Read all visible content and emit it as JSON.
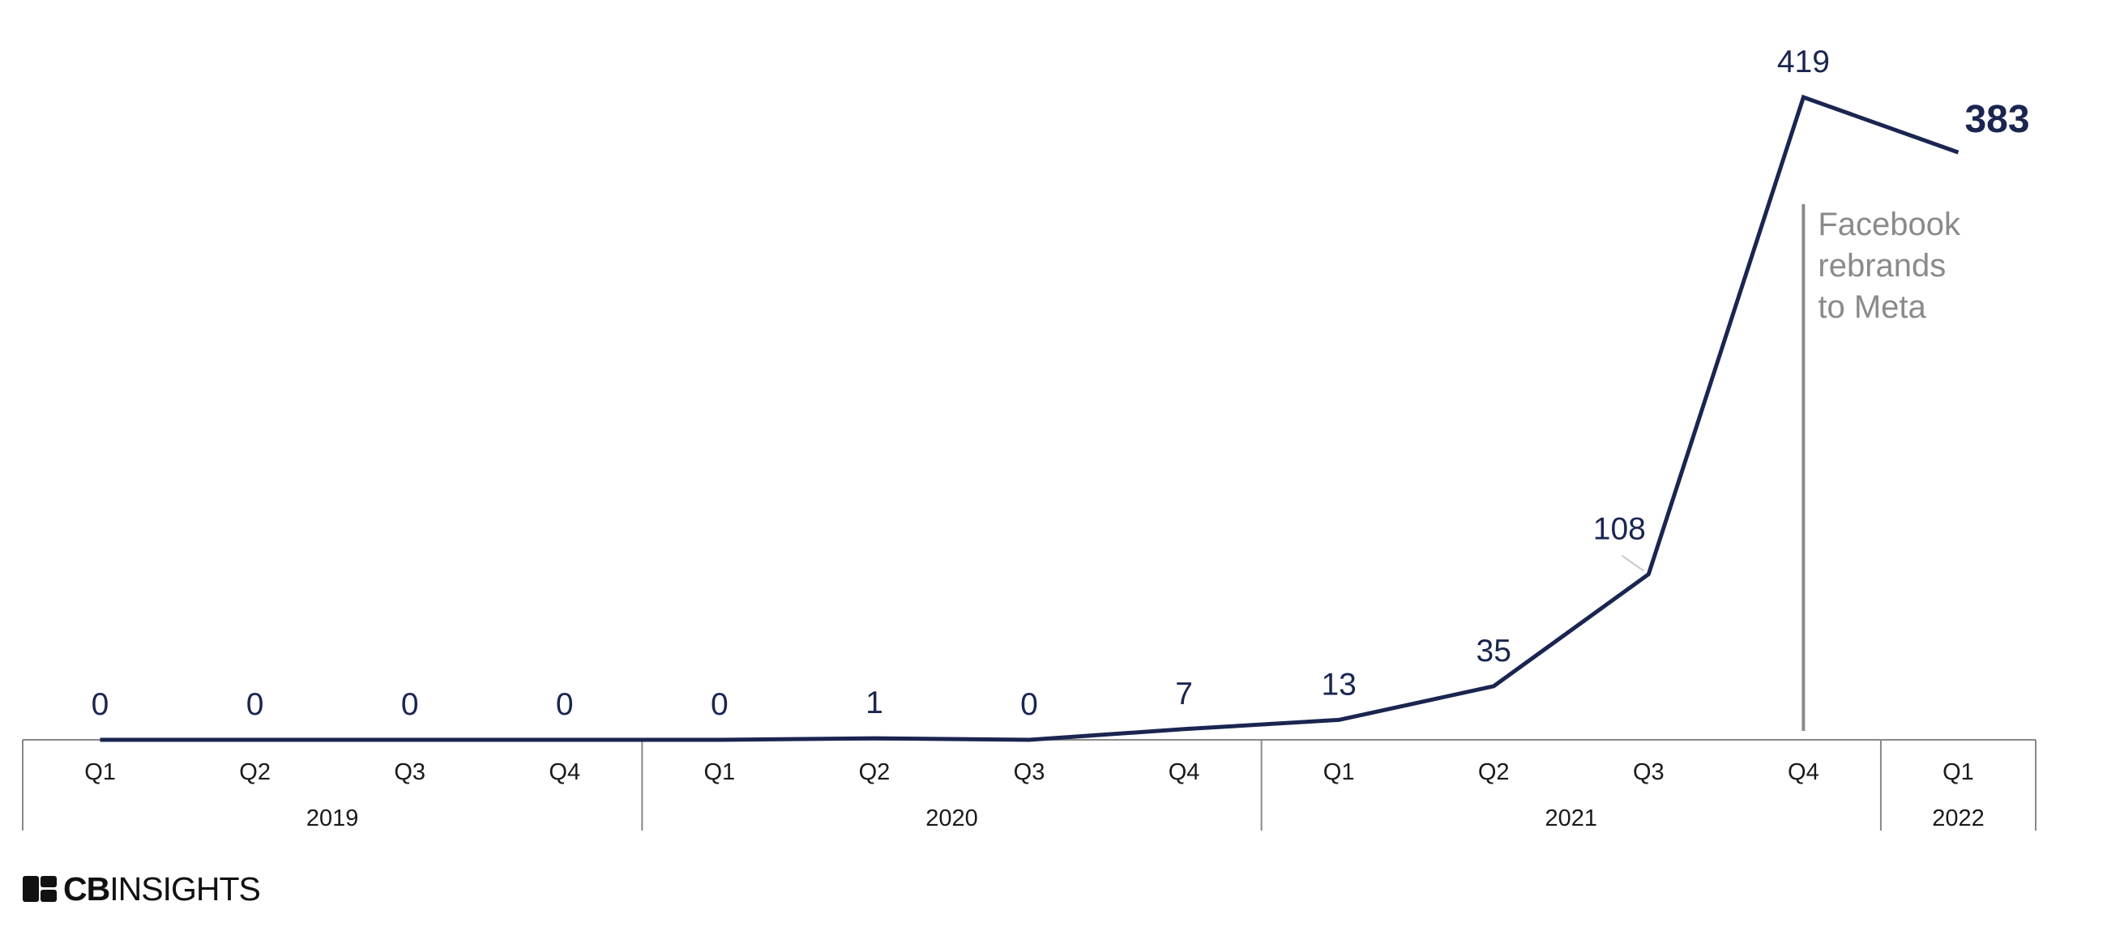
{
  "chart_data": {
    "type": "line",
    "categories": [
      "Q1",
      "Q2",
      "Q3",
      "Q4",
      "Q1",
      "Q2",
      "Q3",
      "Q4",
      "Q1",
      "Q2",
      "Q3",
      "Q4",
      "Q1"
    ],
    "years": [
      {
        "label": "2019",
        "span": 4
      },
      {
        "label": "2020",
        "span": 4
      },
      {
        "label": "2021",
        "span": 4
      },
      {
        "label": "2022",
        "span": 1
      }
    ],
    "values": [
      0,
      0,
      0,
      0,
      0,
      1,
      0,
      7,
      13,
      35,
      108,
      419,
      383
    ],
    "value_labels": [
      "0",
      "0",
      "0",
      "0",
      "0",
      "1",
      "0",
      "7",
      "13",
      "35",
      "108",
      "419",
      "383"
    ],
    "ylim": [
      0,
      419
    ],
    "line_color": "#1a2550",
    "annotation": {
      "at_index": 11,
      "lines": [
        "Facebook",
        "rebrands",
        "to Meta"
      ],
      "color": "#8a8a8a"
    },
    "grid": false
  },
  "brand": {
    "bold": "CB",
    "thin": "INSIGHTS"
  }
}
